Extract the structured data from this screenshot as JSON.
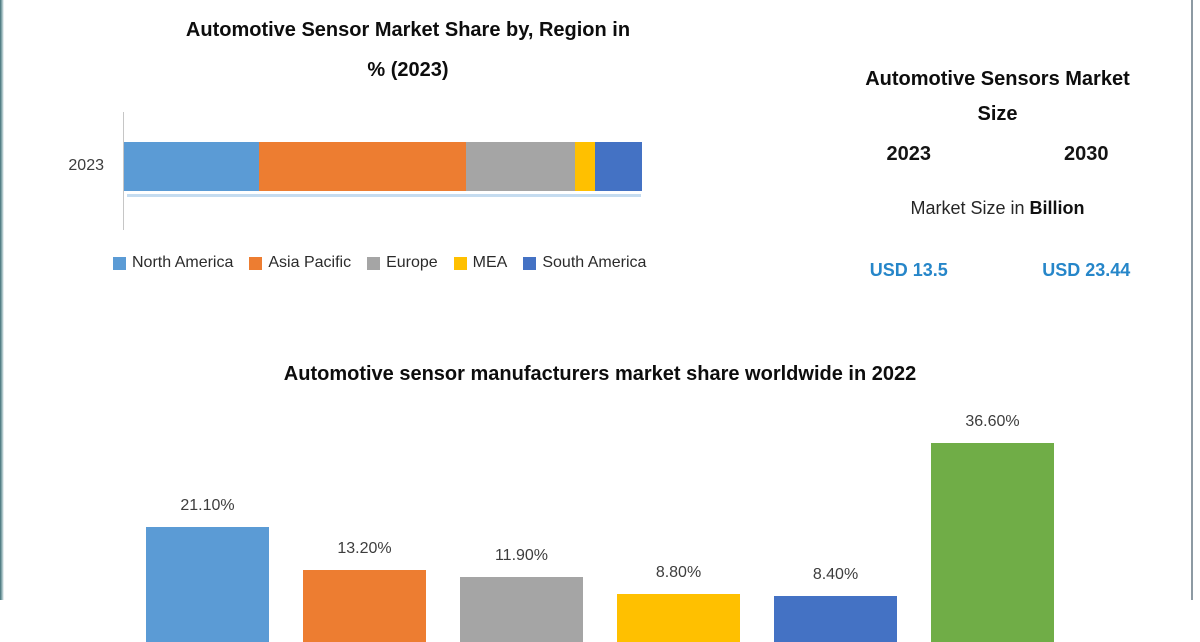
{
  "page": {
    "background": "#ffffff",
    "left_edge_color": "#3f6e75",
    "right_edge_color": "#8d9aa3"
  },
  "chart_data": [
    {
      "type": "bar",
      "subtype": "horizontal-stacked",
      "title": "Automotive Sensor Market Share by, Region in % (2023)",
      "title_lines": [
        "Automotive Sensor Market Share by, Region in",
        "% (2023)"
      ],
      "categories": [
        "2023"
      ],
      "series": [
        {
          "name": "North America",
          "value": 26,
          "color": "#5B9BD5"
        },
        {
          "name": "Asia Pacific",
          "value": 40,
          "color": "#ED7D31"
        },
        {
          "name": "Europe",
          "value": 21,
          "color": "#A5A5A5"
        },
        {
          "name": "MEA",
          "value": 4,
          "color": "#FFC000"
        },
        {
          "name": "South America",
          "value": 9,
          "color": "#4472C4"
        }
      ],
      "xlim": [
        0,
        100
      ],
      "grid": false,
      "legend_position": "bottom"
    },
    {
      "type": "bar",
      "subtype": "vertical",
      "title": "Automotive sensor manufacturers market share worldwide in 2022",
      "values": [
        21.1,
        13.2,
        11.9,
        8.8,
        8.4,
        36.6
      ],
      "data_labels": [
        "21.10%",
        "13.20%",
        "11.90%",
        "8.80%",
        "8.40%",
        "36.60%"
      ],
      "colors": [
        "#5B9BD5",
        "#ED7D31",
        "#A5A5A5",
        "#FFC000",
        "#4472C4",
        "#70AD47"
      ],
      "categories_visible": false,
      "layout_note": "plot area cut off at bottom edge of image; category axis not visible"
    }
  ],
  "info_panel": {
    "title": "Automotive Sensors Market Size",
    "title_lines": [
      "Automotive Sensors Market",
      "Size"
    ],
    "col_2023": {
      "year": "2023",
      "value": "USD 13.5"
    },
    "col_2030": {
      "year": "2030",
      "value": "USD 23.44"
    },
    "subtitle_prefix": "Market Size in ",
    "subtitle_bold": "Billion",
    "value_color": "#2686C9"
  }
}
